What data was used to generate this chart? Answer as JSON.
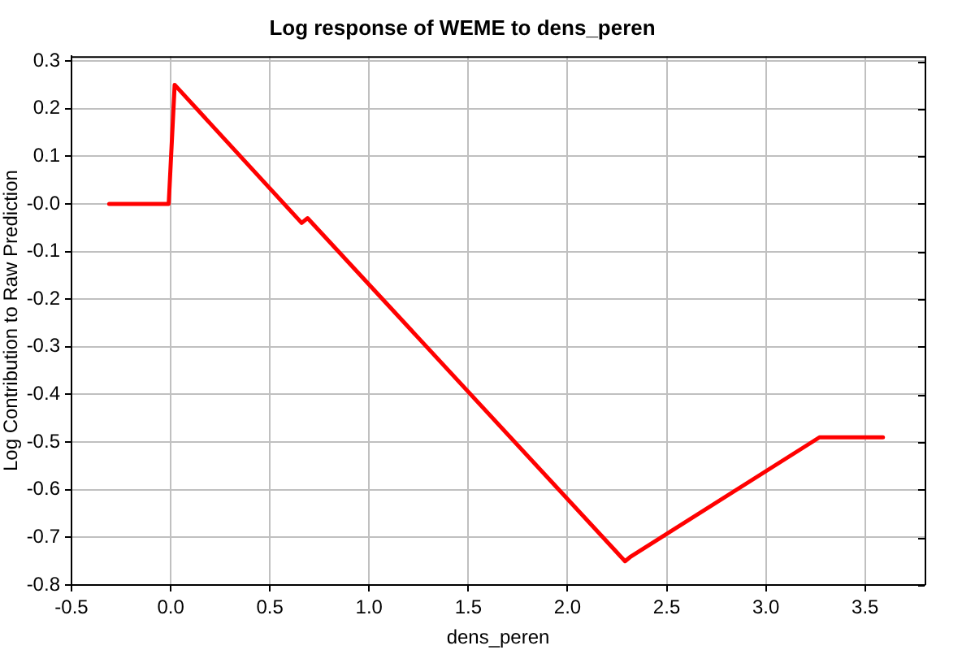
{
  "chart_data": {
    "type": "line",
    "title": "Log response of WEME to dens_peren",
    "xlabel": "dens_peren",
    "ylabel": "Log Contribution to Raw Prediction",
    "x": [
      -0.31,
      -0.01,
      0.02,
      0.66,
      0.69,
      2.29,
      2.32,
      3.27,
      3.59
    ],
    "series": [
      {
        "color": "#ff0000",
        "values": [
          0,
          0,
          0.25,
          -0.04,
          -0.03,
          -0.75,
          -0.74,
          -0.49,
          -0.49
        ]
      }
    ],
    "xlim": [
      -0.5,
      3.8
    ],
    "xticks": [
      -0.5,
      {
        "value": 0,
        "label": "0.0"
      },
      0.5,
      {
        "value": 1,
        "label": "1.0"
      },
      1.5,
      {
        "value": 2,
        "label": "2.0"
      },
      2.5,
      {
        "value": 3,
        "label": "3.0"
      },
      3.5
    ],
    "ylim": [
      -0.8,
      0.31
    ],
    "yticks": [
      -0.8,
      -0.7,
      -0.6,
      -0.5,
      -0.4,
      -0.3,
      -0.2,
      -0.1,
      {
        "value": 0,
        "label": "-0.0"
      },
      0.1,
      0.2,
      0.3
    ],
    "grid": true
  }
}
